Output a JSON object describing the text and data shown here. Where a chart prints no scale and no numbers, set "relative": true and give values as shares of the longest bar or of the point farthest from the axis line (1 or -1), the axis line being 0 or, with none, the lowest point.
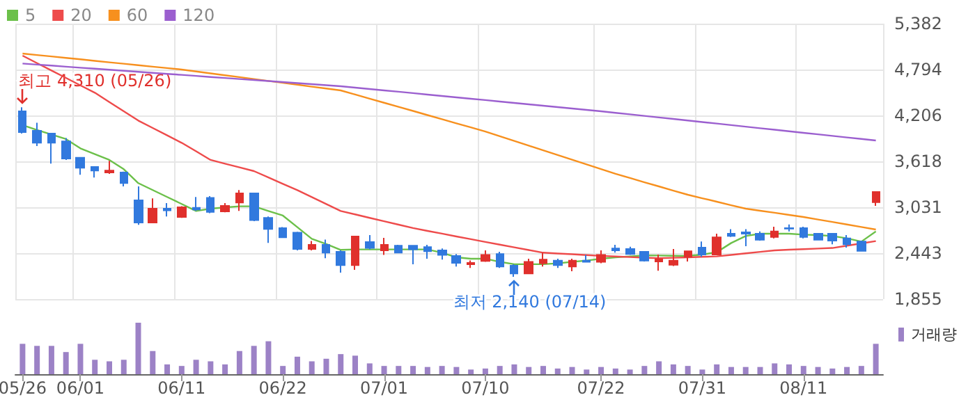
{
  "chart_data": [
    {
      "type": "candlestick",
      "categories": [
        "05/26",
        null,
        null,
        null,
        "06/01",
        null,
        null,
        null,
        null,
        null,
        null,
        "06/11",
        null,
        null,
        null,
        null,
        null,
        null,
        "06/22",
        null,
        null,
        null,
        null,
        null,
        null,
        "07/01",
        null,
        null,
        null,
        null,
        null,
        null,
        "07/10",
        null,
        null,
        null,
        null,
        null,
        null,
        null,
        "07/22",
        null,
        null,
        null,
        null,
        null,
        null,
        "07/31",
        null,
        null,
        null,
        null,
        null,
        null,
        "08/11",
        null,
        null,
        null,
        null,
        null
      ],
      "ohlc": [
        [
          4260,
          4310,
          3975,
          3993
        ],
        [
          4011,
          4112,
          3815,
          3856
        ],
        [
          3975,
          3975,
          3589,
          3856
        ],
        [
          3874,
          3916,
          3637,
          3654
        ],
        [
          3666,
          3666,
          3447,
          3536
        ],
        [
          3548,
          3548,
          3411,
          3500
        ],
        [
          3476,
          3625,
          3459,
          3500
        ],
        [
          3476,
          3488,
          3298,
          3340
        ],
        [
          3120,
          3298,
          2805,
          2835
        ],
        [
          2835,
          3144,
          2835,
          3013
        ],
        [
          3013,
          3084,
          2912,
          2990
        ],
        [
          2906,
          3043,
          2894,
          3031
        ],
        [
          3025,
          3162,
          2983,
          3001
        ],
        [
          3150,
          3174,
          2954,
          2971
        ],
        [
          2978,
          3084,
          2966,
          3049
        ],
        [
          3090,
          3250,
          2983,
          3209
        ],
        [
          3209,
          3209,
          2853,
          2865
        ],
        [
          2895,
          2912,
          2574,
          2752
        ],
        [
          2764,
          2776,
          2645,
          2645
        ],
        [
          2705,
          2716,
          2479,
          2497
        ],
        [
          2497,
          2598,
          2479,
          2550
        ],
        [
          2550,
          2616,
          2378,
          2449
        ],
        [
          2461,
          2479,
          2194,
          2289
        ],
        [
          2289,
          2657,
          2230,
          2657
        ],
        [
          2586,
          2675,
          2491,
          2509
        ],
        [
          2479,
          2639,
          2420,
          2550
        ],
        [
          2538,
          2550,
          2449,
          2449
        ],
        [
          2538,
          2538,
          2301,
          2491
        ],
        [
          2521,
          2550,
          2372,
          2467
        ],
        [
          2479,
          2503,
          2360,
          2420
        ],
        [
          2408,
          2431,
          2271,
          2319
        ],
        [
          2301,
          2349,
          2254,
          2319
        ],
        [
          2343,
          2479,
          2331,
          2420
        ],
        [
          2432,
          2461,
          2254,
          2271
        ],
        [
          2283,
          2301,
          2140,
          2182
        ],
        [
          2182,
          2372,
          2182,
          2331
        ],
        [
          2313,
          2449,
          2271,
          2360
        ],
        [
          2348,
          2372,
          2254,
          2289
        ],
        [
          2271,
          2372,
          2212,
          2348
        ],
        [
          2348,
          2420,
          2331,
          2331
        ],
        [
          2331,
          2479,
          2313,
          2420
        ],
        [
          2503,
          2550,
          2449,
          2479
        ],
        [
          2497,
          2526,
          2420,
          2432
        ],
        [
          2461,
          2466,
          2336,
          2348
        ],
        [
          2336,
          2425,
          2217,
          2366
        ],
        [
          2294,
          2496,
          2277,
          2348
        ],
        [
          2395,
          2467,
          2336,
          2467
        ],
        [
          2514,
          2591,
          2395,
          2425
        ],
        [
          2425,
          2692,
          2425,
          2645
        ],
        [
          2692,
          2751,
          2651,
          2663
        ],
        [
          2710,
          2751,
          2532,
          2692
        ],
        [
          2692,
          2722,
          2603,
          2615
        ],
        [
          2651,
          2781,
          2633,
          2722
        ],
        [
          2763,
          2811,
          2722,
          2757
        ],
        [
          2763,
          2781,
          2633,
          2651
        ],
        [
          2692,
          2692,
          2609,
          2615
        ],
        [
          2692,
          2692,
          2556,
          2603
        ],
        [
          2633,
          2674,
          2514,
          2556
        ],
        [
          2591,
          2603,
          2472,
          2472
        ],
        [
          3096,
          3226,
          3049,
          3226
        ]
      ],
      "series": [
        {
          "name": "5",
          "type": "line",
          "color": "#6cc04a",
          "values": [
            4082,
            4020,
            3962,
            3904,
            3785,
            3711,
            3637,
            3518,
            3340,
            3251,
            3162,
            3073,
            2983,
            3013,
            3028,
            3043,
            3043,
            2983,
            2924,
            2776,
            2627,
            2560,
            2485,
            2491,
            2491,
            2491,
            2491,
            2491,
            2491,
            2449,
            2390,
            2372,
            2372,
            2331,
            2301,
            2301,
            2301,
            2313,
            2331,
            2348,
            2372,
            2390,
            2402,
            2415,
            2413,
            2410,
            2407,
            2425,
            2455,
            2573,
            2662,
            2692,
            2692,
            2692,
            2680,
            2674,
            2662,
            2633,
            2591,
            2722
          ]
        },
        {
          "name": "20",
          "type": "line",
          "color": "#ee4b4b",
          "values": [
            4972,
            4877,
            4782,
            4687,
            4592,
            4497,
            4378,
            4260,
            4141,
            4046,
            3951,
            3856,
            3747,
            3637,
            3589,
            3542,
            3494,
            3413,
            3331,
            3250,
            3161,
            3072,
            2983,
            2939,
            2895,
            2852,
            2808,
            2764,
            2728,
            2693,
            2657,
            2622,
            2586,
            2552,
            2517,
            2483,
            2449,
            2439,
            2429,
            2418,
            2408,
            2400,
            2393,
            2385,
            2378,
            2384,
            2390,
            2396,
            2402,
            2421,
            2441,
            2460,
            2479,
            2487,
            2494,
            2502,
            2509,
            2539,
            2568,
            2598
          ]
        },
        {
          "name": "60",
          "type": "line",
          "color": "#f7901e",
          "values": [
            4999,
            4980,
            4962,
            4943,
            4925,
            4906,
            4887,
            4869,
            4850,
            4831,
            4813,
            4794,
            4770,
            4745,
            4721,
            4697,
            4672,
            4648,
            4624,
            4600,
            4575,
            4551,
            4527,
            4474,
            4422,
            4369,
            4316,
            4264,
            4211,
            4158,
            4105,
            4053,
            4000,
            3940,
            3880,
            3820,
            3760,
            3700,
            3640,
            3580,
            3520,
            3459,
            3405,
            3351,
            3298,
            3244,
            3191,
            3146,
            3102,
            3057,
            3013,
            2986,
            2960,
            2933,
            2906,
            2874,
            2842,
            2810,
            2778,
            2746
          ]
        },
        {
          "name": "120",
          "type": "line",
          "color": "#9b5fcf",
          "values": [
            4871,
            4858,
            4845,
            4831,
            4818,
            4805,
            4792,
            4779,
            4765,
            4752,
            4739,
            4726,
            4713,
            4699,
            4686,
            4673,
            4660,
            4647,
            4634,
            4621,
            4607,
            4594,
            4581,
            4563,
            4545,
            4527,
            4510,
            4492,
            4474,
            4456,
            4438,
            4420,
            4403,
            4385,
            4367,
            4349,
            4331,
            4313,
            4296,
            4278,
            4260,
            4240,
            4221,
            4201,
            4181,
            4162,
            4142,
            4122,
            4103,
            4083,
            4063,
            4043,
            4024,
            4004,
            3984,
            3965,
            3945,
            3925,
            3906,
            3886
          ]
        }
      ],
      "ylim": [
        1855,
        5382
      ],
      "yticks": [
        {
          "value": 1855,
          "label": "1,855"
        },
        {
          "value": 2443,
          "label": "2,443"
        },
        {
          "value": 3031,
          "label": "3,031"
        },
        {
          "value": 3618,
          "label": "3,618"
        },
        {
          "value": 4206,
          "label": "4,206"
        },
        {
          "value": 4794,
          "label": "4,794"
        },
        {
          "value": 5382,
          "label": "5,382"
        }
      ],
      "annotations": [
        {
          "text": "최고 4,310 (05/26)",
          "x": "05/26",
          "y": 4310
        },
        {
          "text": "최저 2,140 (07/14)",
          "y": 2140
        }
      ],
      "marker": "none",
      "grid": true,
      "legend": "top left",
      "tick_labels": "y"
    },
    {
      "type": "bar",
      "relative": true,
      "categories": [
        "05/26",
        null,
        null,
        null,
        "06/01",
        null,
        null,
        null,
        null,
        null,
        null,
        "06/11",
        null,
        null,
        null,
        null,
        null,
        null,
        "06/22",
        null,
        null,
        null,
        null,
        null,
        null,
        "07/01",
        null,
        null,
        null,
        null,
        null,
        null,
        "07/10",
        null,
        null,
        null,
        null,
        null,
        null,
        null,
        "07/22",
        null,
        null,
        null,
        null,
        null,
        null,
        "07/31",
        null,
        null,
        null,
        null,
        null,
        null,
        "08/11",
        null,
        null,
        null,
        null,
        null
      ],
      "series": [
        {
          "name": "거래량",
          "color": "#9c82c6",
          "values": [
            0.59,
            0.55,
            0.55,
            0.43,
            0.59,
            0.28,
            0.25,
            0.28,
            1,
            0.45,
            0.19,
            0.16,
            0.28,
            0.25,
            0.19,
            0.45,
            0.55,
            0.64,
            0.16,
            0.34,
            0.25,
            0.3,
            0.39,
            0.36,
            0.21,
            0.16,
            0.16,
            0.16,
            0.14,
            0.16,
            0.14,
            0.09,
            0.11,
            0.16,
            0.19,
            0.14,
            0.16,
            0.11,
            0.14,
            0.09,
            0.14,
            0.11,
            0.09,
            0.16,
            0.25,
            0.19,
            0.16,
            0.09,
            0.19,
            0.14,
            0.14,
            0.14,
            0.21,
            0.19,
            0.16,
            0.14,
            0.11,
            0.14,
            0.16,
            0.59
          ]
        }
      ],
      "legend": "top right",
      "tick_labels": "x"
    }
  ]
}
